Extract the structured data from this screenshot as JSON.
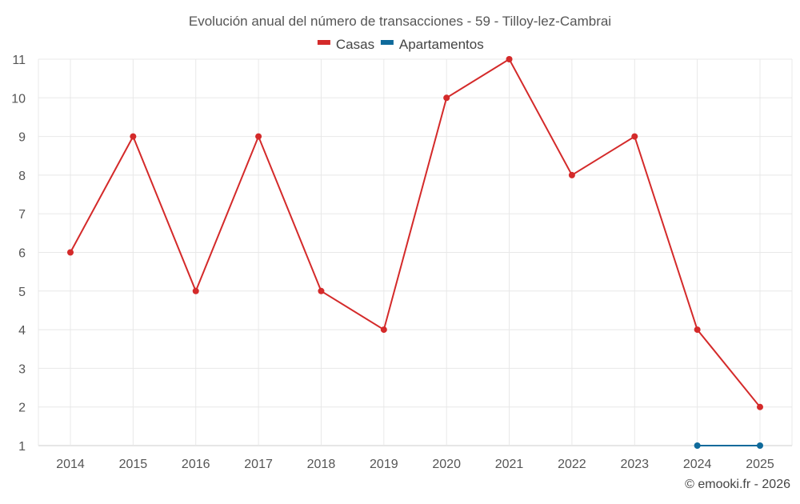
{
  "chart_data": {
    "type": "line",
    "title": "Evolución anual del número de transacciones - 59 - Tilloy-lez-Cambrai",
    "categories": [
      "2014",
      "2015",
      "2016",
      "2017",
      "2018",
      "2019",
      "2020",
      "2021",
      "2022",
      "2023",
      "2024",
      "2025"
    ],
    "y_ticks": [
      "1",
      "2",
      "3",
      "4",
      "5",
      "6",
      "7",
      "8",
      "9",
      "10",
      "11"
    ],
    "ylim": [
      1,
      11
    ],
    "grid": true,
    "legend_position": "top-center",
    "series": [
      {
        "name": "Casas",
        "color": "#d42a2a",
        "values": [
          6,
          9,
          5,
          9,
          5,
          4,
          10,
          11,
          8,
          9,
          4,
          2
        ]
      },
      {
        "name": "Apartamentos",
        "color": "#0f6a9b",
        "values": [
          null,
          null,
          null,
          null,
          null,
          null,
          null,
          null,
          null,
          null,
          1,
          1
        ]
      }
    ],
    "xlabel": "",
    "ylabel": ""
  },
  "credit": "© emooki.fr - 2026"
}
